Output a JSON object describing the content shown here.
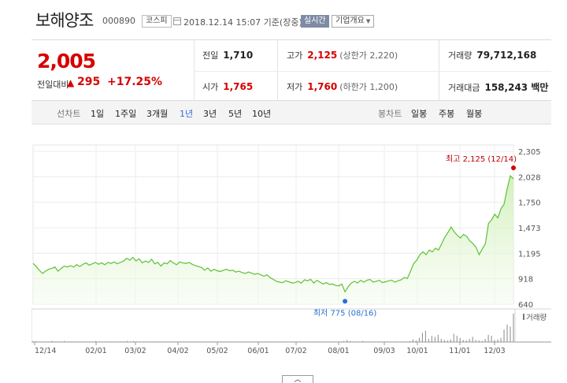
{
  "header": {
    "name": "보해양조",
    "code": "000890",
    "market": "코스피",
    "date": "2018.12.14 15:07 기준(장중)",
    "realtime": "실시간",
    "company_info": "기업개요"
  },
  "summary": {
    "price": "2,005",
    "change_label": "전일대비",
    "change_arrow": "▲",
    "change_value": "295",
    "change_pct": "+17.25%",
    "prev_label": "전일",
    "prev": "1,710",
    "high_label": "고가",
    "high": "2,125",
    "upper_limit": "(상한가 2,220)",
    "volume_label": "거래량",
    "volume": "79,712,168",
    "open_label": "시가",
    "open": "1,765",
    "low_label": "저가",
    "low": "1,760",
    "lower_limit": "(하한가 1,200)",
    "amount_label": "거래대금",
    "amount": "158,243 백만"
  },
  "periods": {
    "line_label": "선차트",
    "items": [
      "1일",
      "1주일",
      "3개월",
      "1년",
      "3년",
      "5년",
      "10년"
    ],
    "selected": 3,
    "candle_label": "봉차트",
    "candle_items": [
      "일봉",
      "주봉",
      "월봉"
    ]
  },
  "colors": {
    "up": "#d60000",
    "line": "#5cc233",
    "area": "#d8f4c6",
    "min_marker": "#2a6fd6",
    "volume_bar": "#8a8a8a",
    "selected_period": "#3a6ad8"
  },
  "chart_data": {
    "type": "area",
    "y_ticks": [
      "2,305",
      "2,028",
      "1,750",
      "1,473",
      "1,195",
      "918",
      "640"
    ],
    "ylim": [
      640,
      2305
    ],
    "x_ticks": [
      "12/14",
      "02/01",
      "03/02",
      "04/02",
      "05/02",
      "06/01",
      "07/02",
      "08/01",
      "09/03",
      "10/01",
      "11/01",
      "12/03"
    ],
    "series": [
      {
        "values": [
          1085,
          1050,
          1010,
          975,
          1000,
          1020,
          1030,
          1045,
          1000,
          1030,
          1055,
          1045,
          1060,
          1045,
          1070,
          1050,
          1075,
          1090,
          1065,
          1080,
          1095,
          1075,
          1090,
          1070,
          1095,
          1085,
          1100,
          1080,
          1095,
          1110,
          1140,
          1120,
          1150,
          1110,
          1135,
          1090,
          1110,
          1095,
          1130,
          1080,
          1095,
          1055,
          1090,
          1080,
          1115,
          1090,
          1070,
          1100,
          1090,
          1085,
          1095,
          1075,
          1060,
          1050,
          1040,
          1010,
          1035,
          1000,
          1020,
          1005,
          995,
          1010,
          1020,
          1005,
          1010,
          990,
          1000,
          985,
          975,
          990,
          980,
          965,
          975,
          960,
          945,
          960,
          930,
          910,
          890,
          880,
          875,
          895,
          885,
          870,
          875,
          890,
          870,
          905,
          895,
          910,
          870,
          900,
          880,
          860,
          875,
          855,
          860,
          845,
          840,
          860,
          775,
          830,
          870,
          890,
          870,
          900,
          880,
          900,
          910,
          880,
          890,
          900,
          875,
          885,
          895,
          900,
          880,
          895,
          905,
          930,
          920,
          1000,
          1080,
          1120,
          1180,
          1210,
          1180,
          1230,
          1210,
          1250,
          1230,
          1300,
          1370,
          1420,
          1480,
          1430,
          1390,
          1360,
          1400,
          1380,
          1330,
          1300,
          1260,
          1180,
          1240,
          1300,
          1520,
          1560,
          1620,
          1580,
          1680,
          1730,
          1900,
          2040,
          2005
        ],
        "min": {
          "label": "최저",
          "value": "775",
          "date": "(08/16)"
        },
        "max": {
          "label": "최고",
          "value": "2,125",
          "date": "(12/14)"
        }
      }
    ],
    "volume_label": "거래량",
    "volume": [
      2,
      2,
      1,
      1,
      1,
      1,
      2,
      1,
      1,
      1,
      2,
      1,
      1,
      1,
      1,
      1,
      1,
      1,
      1,
      1,
      2,
      1,
      1,
      1,
      1,
      1,
      1,
      1,
      1,
      1,
      2,
      1,
      2,
      1,
      1,
      1,
      1,
      1,
      1,
      1,
      1,
      1,
      1,
      1,
      1,
      1,
      1,
      1,
      1,
      1,
      1,
      1,
      1,
      1,
      1,
      1,
      1,
      1,
      1,
      1,
      1,
      1,
      1,
      1,
      1,
      1,
      1,
      1,
      1,
      1,
      1,
      1,
      1,
      1,
      1,
      1,
      1,
      1,
      1,
      1,
      1,
      1,
      1,
      1,
      1,
      1,
      1,
      1,
      1,
      1,
      1,
      1,
      1,
      1,
      1,
      1,
      1,
      1,
      1,
      2,
      4,
      2,
      1,
      1,
      1,
      2,
      1,
      1,
      1,
      1,
      1,
      1,
      1,
      1,
      1,
      1,
      1,
      1,
      1,
      1,
      2,
      5,
      3,
      8,
      18,
      22,
      6,
      12,
      10,
      14,
      6,
      4,
      3,
      5,
      16,
      12,
      8,
      4,
      3,
      6,
      10,
      4,
      3,
      2,
      6,
      14,
      12,
      4,
      5,
      8,
      24,
      34,
      30,
      55
    ]
  }
}
